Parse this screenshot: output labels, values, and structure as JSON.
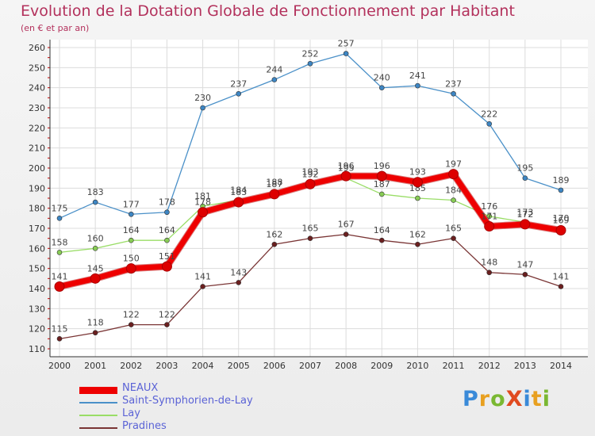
{
  "header": {
    "title": "Evolution de la Dotation Globale de Fonctionnement par Habitant",
    "subtitle": "(en € et par an)"
  },
  "logo": {
    "text": "ProXiti"
  },
  "colors": {
    "title": "#b3315c",
    "axis": "#333333",
    "grid": "#dcdcdc",
    "tick_mark": "#cc0000",
    "legend_text": "#5b63d6"
  },
  "chart_data": {
    "type": "line",
    "x": [
      "2000",
      "2001",
      "2002",
      "2003",
      "2004",
      "2005",
      "2006",
      "2007",
      "2008",
      "2009",
      "2010",
      "2011",
      "2012",
      "2013",
      "2014"
    ],
    "ylim": [
      110,
      260
    ],
    "yticks": [
      110,
      120,
      130,
      140,
      150,
      160,
      170,
      180,
      190,
      200,
      210,
      220,
      230,
      240,
      250,
      260
    ],
    "grid": true,
    "legend_position": "bottom-left",
    "series": [
      {
        "name": "Saint-Symphorien-de-Lay",
        "color": "#4a90c8",
        "marker": "#3d86c4",
        "values": [
          175,
          183,
          177,
          178,
          230,
          237,
          244,
          252,
          257,
          240,
          241,
          237,
          222,
          195,
          189
        ]
      },
      {
        "name": "Pradines",
        "color": "#7a3535",
        "marker": "#6b1f1f",
        "values": [
          115,
          118,
          122,
          122,
          141,
          143,
          162,
          165,
          167,
          164,
          162,
          165,
          148,
          147,
          141
        ]
      },
      {
        "name": "Lay",
        "color": "#99dd66",
        "marker": "#88cc55",
        "values": [
          158,
          160,
          164,
          164,
          181,
          184,
          188,
          193,
          195,
          187,
          185,
          184,
          176,
          173,
          170
        ]
      },
      {
        "name": "NEAUX",
        "color": "#ee0000",
        "marker": "#dd0000",
        "values": [
          141,
          145,
          150,
          151,
          178,
          183,
          187,
          192,
          196,
          196,
          193,
          197,
          171,
          172,
          169
        ]
      }
    ],
    "legend_order": [
      "NEAUX",
      "Saint-Symphorien-de-Lay",
      "Lay",
      "Pradines"
    ]
  }
}
